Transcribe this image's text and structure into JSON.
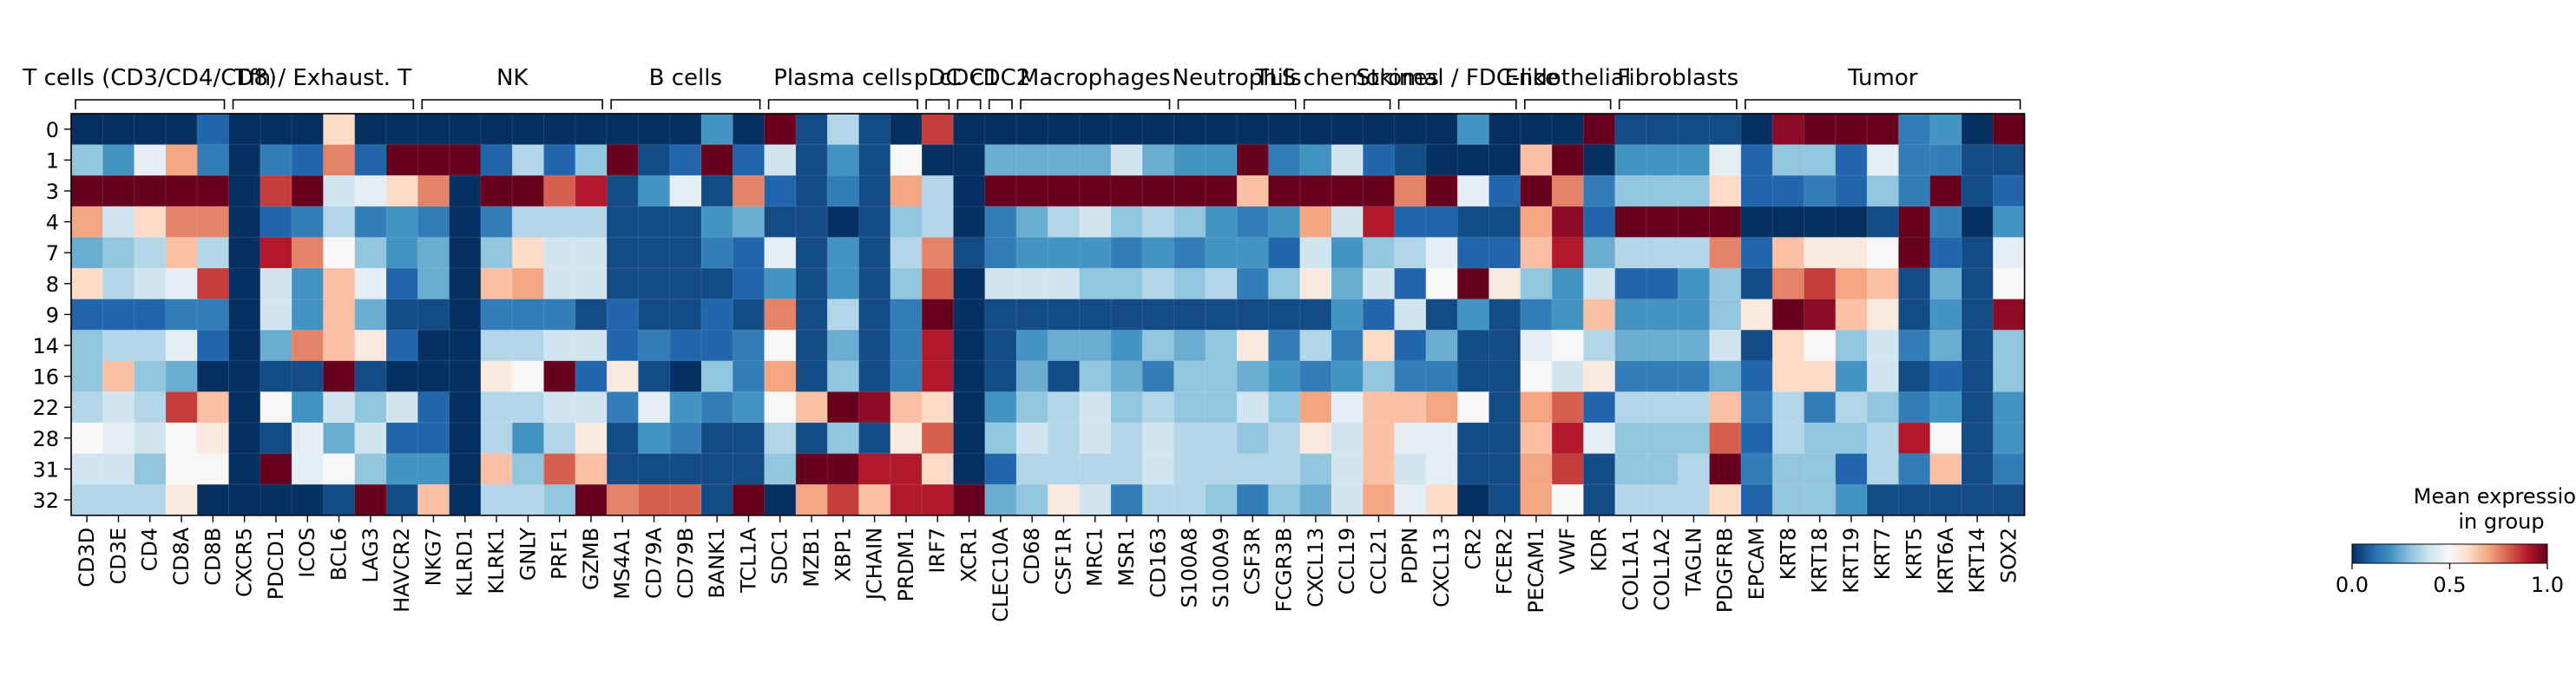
{
  "chart_data": {
    "type": "heatmap",
    "title": "",
    "xlabel": "",
    "ylabel": "",
    "colormap": {
      "name": "RdBu_r",
      "stops": [
        "#053061",
        "#2166ac",
        "#4393c3",
        "#92c5de",
        "#d1e5f0",
        "#f7f7f7",
        "#fddbc7",
        "#f4a582",
        "#d6604d",
        "#b2182b",
        "#67001f"
      ]
    },
    "colorbar": {
      "title_line1": "Mean expression",
      "title_line2": "in group",
      "ticks": [
        "0.0",
        "0.5",
        "1.0"
      ],
      "range": [
        0,
        1
      ]
    },
    "rows": [
      "0",
      "1",
      "3",
      "4",
      "7",
      "8",
      "9",
      "14",
      "16",
      "22",
      "28",
      "31",
      "32"
    ],
    "columns": [
      "CD3D",
      "CD3E",
      "CD4",
      "CD8A",
      "CD8B",
      "CXCR5",
      "PDCD1",
      "ICOS",
      "BCL6",
      "LAG3",
      "HAVCR2",
      "NKG7",
      "KLRD1",
      "KLRK1",
      "GNLY",
      "PRF1",
      "GZMB",
      "MS4A1",
      "CD79A",
      "CD79B",
      "BANK1",
      "TCL1A",
      "SDC1",
      "MZB1",
      "XBP1",
      "JCHAIN",
      "PRDM1",
      "IRF7",
      "XCR1",
      "CLEC10A",
      "CD68",
      "CSF1R",
      "MRC1",
      "MSR1",
      "CD163",
      "S100A8",
      "S100A9",
      "CSF3R",
      "FCGR3B",
      "CXCL13",
      "CCL19",
      "CCL21",
      "PDPN",
      "CXCL13",
      "CR2",
      "FCER2",
      "PECAM1",
      "VWF",
      "KDR",
      "COL1A1",
      "COL1A2",
      "TAGLN",
      "PDGFRB",
      "EPCAM",
      "KRT8",
      "KRT18",
      "KRT19",
      "KRT7",
      "KRT5",
      "KRT6A",
      "KRT14",
      "SOX2"
    ],
    "groups": [
      {
        "label": "T cells (CD3/CD4/CD8)",
        "start": 0,
        "end": 4
      },
      {
        "label": "Tfh / Exhaust. T",
        "start": 5,
        "end": 10
      },
      {
        "label": "NK",
        "start": 11,
        "end": 16
      },
      {
        "label": "B cells",
        "start": 17,
        "end": 21
      },
      {
        "label": "Plasma cells",
        "start": 22,
        "end": 26
      },
      {
        "label": "pDC",
        "start": 27,
        "end": 27
      },
      {
        "label": "cDC1",
        "start": 28,
        "end": 28
      },
      {
        "label": "cDC2",
        "start": 29,
        "end": 29
      },
      {
        "label": "Macrophages",
        "start": 30,
        "end": 34
      },
      {
        "label": "Neutrophils",
        "start": 35,
        "end": 38
      },
      {
        "label": "TLS chemokines",
        "start": 39,
        "end": 41
      },
      {
        "label": "Stromal / FDC-like",
        "start": 42,
        "end": 45
      },
      {
        "label": "Endothelial",
        "start": 46,
        "end": 48
      },
      {
        "label": "Fibroblasts",
        "start": 49,
        "end": 52
      },
      {
        "label": "Tumor",
        "start": 53,
        "end": 61
      }
    ],
    "values": [
      [
        0.0,
        0.0,
        0.0,
        0.0,
        0.1,
        0.0,
        0.0,
        0.0,
        0.6,
        0.0,
        0.0,
        0.0,
        0.0,
        0.0,
        0.0,
        0.0,
        0.0,
        0.0,
        0.0,
        0.0,
        0.2,
        0.0,
        1.0,
        0.05,
        0.35,
        0.05,
        0.0,
        0.85,
        0.0,
        0.0,
        0.0,
        0.0,
        0.0,
        0.0,
        0.0,
        0.0,
        0.0,
        0.0,
        0.0,
        0.0,
        0.0,
        0.0,
        0.0,
        0.0,
        0.2,
        0.0,
        0.0,
        0.0,
        1.0,
        0.05,
        0.05,
        0.05,
        0.05,
        0.0,
        0.95,
        1.0,
        1.0,
        1.0,
        0.15,
        0.2,
        0.0,
        1.0
      ],
      [
        0.3,
        0.2,
        0.45,
        0.7,
        0.15,
        0.0,
        0.15,
        0.1,
        0.75,
        0.1,
        1.0,
        1.0,
        1.0,
        0.1,
        0.35,
        0.1,
        0.3,
        1.0,
        0.05,
        0.1,
        1.0,
        0.1,
        0.4,
        0.05,
        0.2,
        0.05,
        0.5,
        0.0,
        0.0,
        0.25,
        0.25,
        0.25,
        0.25,
        0.4,
        0.25,
        0.2,
        0.2,
        1.0,
        0.15,
        0.2,
        0.4,
        0.1,
        0.05,
        0.0,
        0.0,
        0.0,
        0.65,
        1.0,
        0.0,
        0.2,
        0.2,
        0.2,
        0.45,
        0.1,
        0.3,
        0.3,
        0.1,
        0.45,
        0.15,
        0.15,
        0.05,
        0.05
      ],
      [
        1.0,
        1.0,
        1.0,
        1.0,
        1.0,
        0.0,
        0.85,
        1.0,
        0.4,
        0.45,
        0.6,
        0.75,
        0.0,
        1.0,
        1.0,
        0.8,
        0.9,
        0.05,
        0.2,
        0.45,
        0.05,
        0.75,
        0.1,
        0.05,
        0.15,
        0.05,
        0.7,
        0.35,
        0.0,
        1.0,
        1.0,
        1.0,
        1.0,
        1.0,
        1.0,
        1.0,
        1.0,
        0.65,
        1.0,
        1.0,
        1.0,
        1.0,
        0.75,
        1.0,
        0.45,
        0.1,
        1.0,
        0.75,
        0.15,
        0.3,
        0.3,
        0.3,
        0.6,
        0.1,
        0.1,
        0.15,
        0.1,
        0.3,
        0.15,
        1.0,
        0.05,
        0.1
      ],
      [
        0.7,
        0.4,
        0.6,
        0.75,
        0.75,
        0.0,
        0.1,
        0.15,
        0.35,
        0.15,
        0.2,
        0.15,
        0.0,
        0.15,
        0.35,
        0.35,
        0.35,
        0.05,
        0.05,
        0.05,
        0.2,
        0.25,
        0.05,
        0.05,
        0.0,
        0.05,
        0.3,
        0.35,
        0.0,
        0.15,
        0.25,
        0.35,
        0.4,
        0.3,
        0.35,
        0.3,
        0.2,
        0.15,
        0.2,
        0.7,
        0.4,
        0.9,
        0.1,
        0.1,
        0.05,
        0.05,
        0.7,
        0.95,
        0.1,
        1.0,
        1.0,
        1.0,
        1.0,
        0.0,
        0.0,
        0.0,
        0.0,
        0.05,
        1.0,
        0.15,
        0.0,
        0.2
      ],
      [
        0.25,
        0.3,
        0.35,
        0.65,
        0.35,
        0.0,
        0.9,
        0.75,
        0.5,
        0.3,
        0.2,
        0.25,
        0.0,
        0.3,
        0.6,
        0.4,
        0.4,
        0.05,
        0.05,
        0.05,
        0.15,
        0.1,
        0.45,
        0.05,
        0.2,
        0.05,
        0.35,
        0.75,
        0.05,
        0.15,
        0.2,
        0.2,
        0.2,
        0.15,
        0.2,
        0.15,
        0.2,
        0.2,
        0.1,
        0.4,
        0.2,
        0.3,
        0.35,
        0.45,
        0.1,
        0.1,
        0.65,
        0.9,
        0.25,
        0.35,
        0.35,
        0.35,
        0.75,
        0.1,
        0.65,
        0.55,
        0.55,
        0.5,
        1.0,
        0.1,
        0.05,
        0.45
      ],
      [
        0.6,
        0.35,
        0.4,
        0.45,
        0.85,
        0.0,
        0.4,
        0.2,
        0.65,
        0.45,
        0.1,
        0.25,
        0.0,
        0.65,
        0.7,
        0.4,
        0.4,
        0.05,
        0.05,
        0.05,
        0.05,
        0.1,
        0.2,
        0.05,
        0.2,
        0.05,
        0.3,
        0.8,
        0.0,
        0.4,
        0.4,
        0.4,
        0.3,
        0.3,
        0.35,
        0.3,
        0.35,
        0.15,
        0.3,
        0.55,
        0.25,
        0.4,
        0.1,
        0.5,
        1.0,
        0.55,
        0.3,
        0.2,
        0.4,
        0.1,
        0.1,
        0.2,
        0.3,
        0.05,
        0.75,
        0.85,
        0.7,
        0.65,
        0.05,
        0.25,
        0.05,
        0.5
      ],
      [
        0.1,
        0.1,
        0.1,
        0.15,
        0.15,
        0.0,
        0.4,
        0.2,
        0.65,
        0.25,
        0.05,
        0.05,
        0.0,
        0.15,
        0.15,
        0.15,
        0.05,
        0.1,
        0.05,
        0.05,
        0.1,
        0.05,
        0.75,
        0.05,
        0.35,
        0.05,
        0.15,
        1.0,
        0.0,
        0.05,
        0.05,
        0.05,
        0.05,
        0.05,
        0.05,
        0.05,
        0.05,
        0.05,
        0.05,
        0.05,
        0.2,
        0.1,
        0.4,
        0.05,
        0.2,
        0.05,
        0.15,
        0.2,
        0.65,
        0.2,
        0.2,
        0.2,
        0.3,
        0.55,
        1.0,
        0.95,
        0.65,
        0.55,
        0.05,
        0.2,
        0.05,
        0.95
      ],
      [
        0.3,
        0.35,
        0.35,
        0.45,
        0.1,
        0.0,
        0.25,
        0.75,
        0.65,
        0.55,
        0.1,
        0.0,
        0.0,
        0.35,
        0.35,
        0.4,
        0.4,
        0.1,
        0.15,
        0.1,
        0.1,
        0.15,
        0.5,
        0.05,
        0.25,
        0.05,
        0.15,
        0.9,
        0.0,
        0.05,
        0.2,
        0.25,
        0.25,
        0.2,
        0.3,
        0.25,
        0.3,
        0.55,
        0.15,
        0.35,
        0.15,
        0.6,
        0.1,
        0.25,
        0.05,
        0.05,
        0.45,
        0.5,
        0.35,
        0.25,
        0.25,
        0.25,
        0.4,
        0.05,
        0.6,
        0.5,
        0.3,
        0.4,
        0.15,
        0.25,
        0.05,
        0.3
      ],
      [
        0.3,
        0.65,
        0.3,
        0.25,
        0.0,
        0.0,
        0.05,
        0.05,
        1.0,
        0.05,
        0.0,
        0.0,
        0.0,
        0.55,
        0.5,
        1.0,
        0.1,
        0.55,
        0.05,
        0.0,
        0.3,
        0.15,
        0.7,
        0.05,
        0.3,
        0.05,
        0.15,
        0.9,
        0.0,
        0.05,
        0.25,
        0.05,
        0.3,
        0.25,
        0.15,
        0.3,
        0.3,
        0.25,
        0.2,
        0.15,
        0.2,
        0.3,
        0.15,
        0.15,
        0.05,
        0.05,
        0.5,
        0.4,
        0.55,
        0.15,
        0.15,
        0.15,
        0.25,
        0.1,
        0.6,
        0.6,
        0.2,
        0.4,
        0.05,
        0.1,
        0.05,
        0.3
      ],
      [
        0.35,
        0.4,
        0.35,
        0.85,
        0.65,
        0.0,
        0.5,
        0.2,
        0.4,
        0.3,
        0.4,
        0.1,
        0.0,
        0.35,
        0.35,
        0.4,
        0.4,
        0.15,
        0.45,
        0.2,
        0.15,
        0.2,
        0.5,
        0.65,
        1.0,
        0.95,
        0.65,
        0.6,
        0.0,
        0.2,
        0.3,
        0.35,
        0.4,
        0.3,
        0.35,
        0.3,
        0.3,
        0.4,
        0.3,
        0.7,
        0.45,
        0.65,
        0.65,
        0.7,
        0.5,
        0.05,
        0.7,
        0.8,
        0.1,
        0.35,
        0.35,
        0.35,
        0.65,
        0.15,
        0.35,
        0.15,
        0.35,
        0.3,
        0.15,
        0.2,
        0.05,
        0.2
      ],
      [
        0.5,
        0.45,
        0.4,
        0.5,
        0.55,
        0.0,
        0.05,
        0.45,
        0.25,
        0.4,
        0.1,
        0.1,
        0.0,
        0.35,
        0.2,
        0.35,
        0.55,
        0.05,
        0.2,
        0.15,
        0.05,
        0.05,
        0.35,
        0.05,
        0.3,
        0.05,
        0.55,
        0.8,
        0.0,
        0.3,
        0.4,
        0.35,
        0.4,
        0.35,
        0.4,
        0.35,
        0.35,
        0.3,
        0.35,
        0.55,
        0.4,
        0.65,
        0.45,
        0.45,
        0.05,
        0.05,
        0.65,
        0.9,
        0.45,
        0.3,
        0.3,
        0.3,
        0.8,
        0.1,
        0.35,
        0.3,
        0.3,
        0.35,
        0.9,
        0.5,
        0.05,
        0.2
      ],
      [
        0.4,
        0.4,
        0.3,
        0.5,
        0.5,
        0.0,
        1.0,
        0.45,
        0.5,
        0.3,
        0.2,
        0.2,
        0.0,
        0.65,
        0.3,
        0.8,
        0.65,
        0.05,
        0.05,
        0.05,
        0.05,
        0.05,
        0.3,
        1.0,
        1.0,
        0.9,
        0.9,
        0.6,
        0.0,
        0.1,
        0.35,
        0.35,
        0.35,
        0.35,
        0.4,
        0.35,
        0.35,
        0.35,
        0.35,
        0.3,
        0.4,
        0.65,
        0.4,
        0.45,
        0.05,
        0.05,
        0.7,
        0.85,
        0.05,
        0.3,
        0.3,
        0.35,
        1.0,
        0.15,
        0.3,
        0.3,
        0.1,
        0.35,
        0.15,
        0.65,
        0.05,
        0.15
      ],
      [
        0.35,
        0.35,
        0.35,
        0.55,
        0.0,
        0.0,
        0.0,
        0.0,
        0.05,
        1.0,
        0.05,
        0.65,
        0.0,
        0.35,
        0.35,
        0.3,
        1.0,
        0.75,
        0.8,
        0.8,
        0.05,
        1.0,
        0.0,
        0.7,
        0.85,
        0.65,
        0.9,
        0.9,
        1.0,
        0.25,
        0.3,
        0.55,
        0.4,
        0.15,
        0.35,
        0.35,
        0.3,
        0.15,
        0.3,
        0.25,
        0.4,
        0.7,
        0.45,
        0.6,
        0.0,
        0.05,
        0.7,
        0.5,
        0.05,
        0.35,
        0.35,
        0.35,
        0.6,
        0.1,
        0.3,
        0.3,
        0.2,
        0.05,
        0.05,
        0.05,
        0.05,
        0.05
      ]
    ]
  }
}
